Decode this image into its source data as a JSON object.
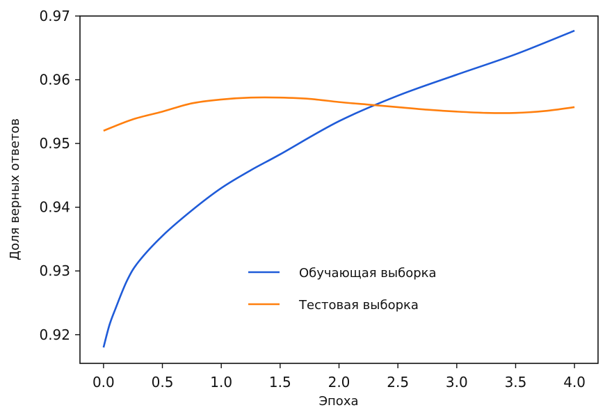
{
  "chart_data": {
    "type": "line",
    "title": "",
    "xlabel": "Эпоха",
    "ylabel": "Доля верных ответов",
    "xlim": [
      -0.2,
      4.2
    ],
    "ylim": [
      0.9155,
      0.97
    ],
    "x_ticks": [
      "0.0",
      "0.5",
      "1.0",
      "1.5",
      "2.0",
      "2.5",
      "3.0",
      "3.5",
      "4.0"
    ],
    "y_ticks": [
      "0.92",
      "0.93",
      "0.94",
      "0.95",
      "0.96",
      "0.97"
    ],
    "grid": false,
    "legend_position": "center",
    "series": [
      {
        "name": "Обучающая выборка",
        "color": "#1f5bd8",
        "x": [
          0.0,
          0.05,
          0.1,
          0.2,
          0.3,
          0.5,
          0.75,
          1.0,
          1.25,
          1.5,
          2.0,
          2.5,
          3.0,
          3.5,
          4.0
        ],
        "y": [
          0.918,
          0.9215,
          0.924,
          0.9285,
          0.9315,
          0.9355,
          0.9395,
          0.943,
          0.9458,
          0.9483,
          0.9535,
          0.9575,
          0.9608,
          0.964,
          0.9677
        ]
      },
      {
        "name": "Тестовая выборка",
        "color": "#ff7f0e",
        "x": [
          0.0,
          0.25,
          0.5,
          0.75,
          1.0,
          1.25,
          1.5,
          1.75,
          2.0,
          2.25,
          2.5,
          2.75,
          3.0,
          3.25,
          3.5,
          3.75,
          4.0
        ],
        "y": [
          0.952,
          0.9538,
          0.955,
          0.9563,
          0.9569,
          0.9572,
          0.9572,
          0.957,
          0.9565,
          0.9561,
          0.9557,
          0.9553,
          0.955,
          0.9548,
          0.9548,
          0.9551,
          0.9557
        ]
      }
    ]
  }
}
